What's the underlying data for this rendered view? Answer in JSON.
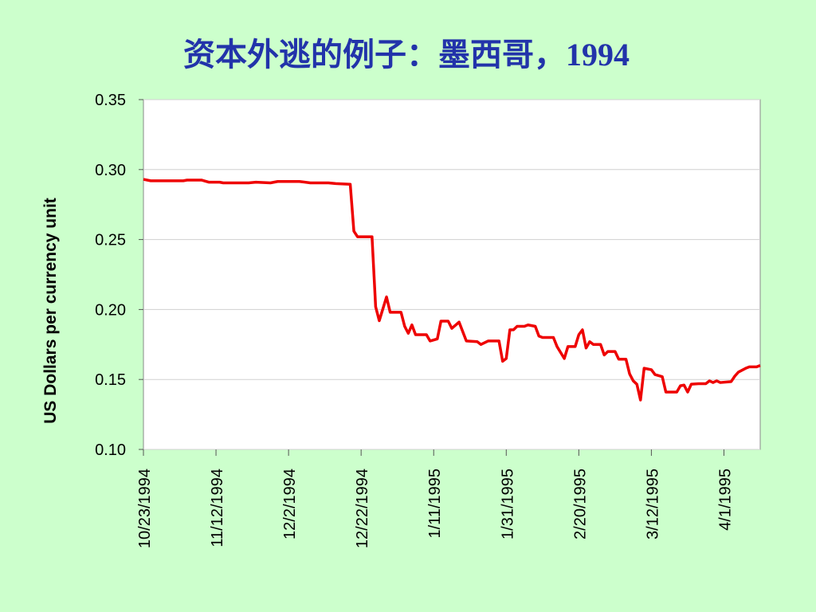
{
  "chart_data": {
    "type": "line",
    "title": "资本外逃的例子：墨西哥，1994",
    "y_label": "US Dollars per currency unit",
    "x": [
      "1994-10-23",
      "1994-10-25",
      "1994-11-03",
      "1994-11-04",
      "1994-11-08",
      "1994-11-10",
      "1994-11-13",
      "1994-11-14",
      "1994-11-21",
      "1994-11-23",
      "1994-11-27",
      "1994-11-29",
      "1994-12-05",
      "1994-12-08",
      "1994-12-13",
      "1994-12-15",
      "1994-12-19",
      "1994-12-20",
      "1994-12-21",
      "1994-12-25",
      "1994-12-26",
      "1994-12-27",
      "1994-12-29",
      "1994-12-30",
      "1995-01-02",
      "1995-01-03",
      "1995-01-04",
      "1995-01-05",
      "1995-01-06",
      "1995-01-09",
      "1995-01-10",
      "1995-01-12",
      "1995-01-13",
      "1995-01-15",
      "1995-01-16",
      "1995-01-18",
      "1995-01-20",
      "1995-01-23",
      "1995-01-24",
      "1995-01-26",
      "1995-01-27",
      "1995-01-29",
      "1995-01-30",
      "1995-01-31",
      "1995-02-01",
      "1995-02-02",
      "1995-02-03",
      "1995-02-05",
      "1995-02-06",
      "1995-02-08",
      "1995-02-09",
      "1995-02-10",
      "1995-02-13",
      "1995-02-14",
      "1995-02-16",
      "1995-02-17",
      "1995-02-19",
      "1995-02-20",
      "1995-02-21",
      "1995-02-22",
      "1995-02-23",
      "1995-02-24",
      "1995-02-26",
      "1995-02-27",
      "1995-02-28",
      "1995-03-02",
      "1995-03-03",
      "1995-03-05",
      "1995-03-06",
      "1995-03-07",
      "1995-03-08",
      "1995-03-09",
      "1995-03-10",
      "1995-03-12",
      "1995-03-13",
      "1995-03-15",
      "1995-03-16",
      "1995-03-19",
      "1995-03-20",
      "1995-03-21",
      "1995-03-22",
      "1995-03-23",
      "1995-03-25",
      "1995-03-27",
      "1995-03-28",
      "1995-03-29",
      "1995-03-30",
      "1995-03-31",
      "1995-04-03",
      "1995-04-04",
      "1995-04-05",
      "1995-04-07",
      "1995-04-08",
      "1995-04-10",
      "1995-04-11"
    ],
    "series": [
      {
        "name": "US Dollars per currency unit",
        "color": "#ee0000",
        "values": [
          0.293,
          0.292,
          0.292,
          0.2925,
          0.2925,
          0.291,
          0.291,
          0.2905,
          0.2905,
          0.291,
          0.2905,
          0.2915,
          0.2915,
          0.2905,
          0.2905,
          0.29,
          0.2895,
          0.256,
          0.252,
          0.252,
          0.202,
          0.192,
          0.209,
          0.198,
          0.198,
          0.188,
          0.183,
          0.189,
          0.182,
          0.182,
          0.1775,
          0.179,
          0.1917,
          0.1917,
          0.1865,
          0.191,
          0.1775,
          0.177,
          0.175,
          0.1775,
          0.1775,
          0.1775,
          0.163,
          0.165,
          0.1855,
          0.1855,
          0.188,
          0.188,
          0.189,
          0.188,
          0.181,
          0.18,
          0.18,
          0.1735,
          0.165,
          0.1735,
          0.1735,
          0.182,
          0.1855,
          0.1725,
          0.177,
          0.175,
          0.175,
          0.1675,
          0.17,
          0.17,
          0.1645,
          0.1645,
          0.154,
          0.149,
          0.1466,
          0.1353,
          0.158,
          0.157,
          0.1535,
          0.152,
          0.141,
          0.141,
          0.1455,
          0.146,
          0.141,
          0.1466,
          0.147,
          0.147,
          0.149,
          0.1478,
          0.149,
          0.1478,
          0.1485,
          0.1524,
          0.1553,
          0.158,
          0.159,
          0.159,
          0.16
        ]
      }
    ],
    "xlim": [
      "1994-10-23",
      "1995-04-11"
    ],
    "xticks": [
      {
        "value": "1994-10-23",
        "label": "10/23/1994"
      },
      {
        "value": "1994-11-12",
        "label": "11/12/1994"
      },
      {
        "value": "1994-12-02",
        "label": "12/2/1994"
      },
      {
        "value": "1994-12-22",
        "label": "12/22/1994"
      },
      {
        "value": "1995-01-11",
        "label": "1/11/1995"
      },
      {
        "value": "1995-01-31",
        "label": "1/31/1995"
      },
      {
        "value": "1995-02-20",
        "label": "2/20/1995"
      },
      {
        "value": "1995-03-12",
        "label": "3/12/1995"
      },
      {
        "value": "1995-04-01",
        "label": "4/1/1995"
      }
    ],
    "ylim": [
      0.1,
      0.35
    ],
    "yticks": [
      {
        "value": 0.1,
        "label": "0.10"
      },
      0.15,
      {
        "value": 0.2,
        "label": "0.20"
      },
      0.25,
      {
        "value": 0.3,
        "label": "0.30"
      },
      0.35
    ],
    "grid": true
  }
}
